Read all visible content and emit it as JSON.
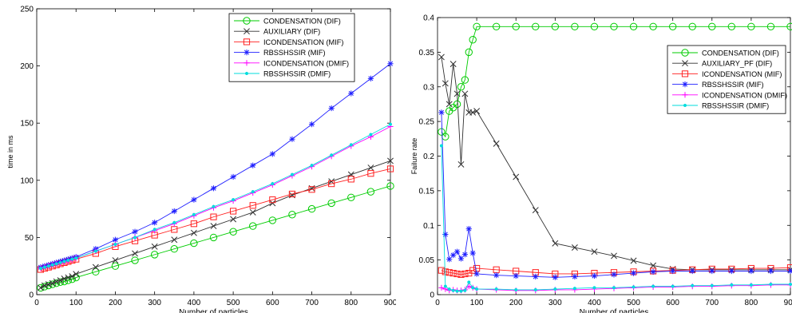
{
  "chart_data": [
    {
      "type": "line",
      "title": "",
      "xlabel": "Number of particles",
      "ylabel": "time in ms",
      "xlim": [
        0,
        900
      ],
      "ylim": [
        0,
        250
      ],
      "xticks": [
        "0",
        "100",
        "200",
        "300",
        "400",
        "500",
        "600",
        "700",
        "800",
        "900"
      ],
      "yticks": [
        "0",
        "50",
        "100",
        "150",
        "200",
        "250"
      ],
      "grid": false,
      "legend_position": "top-right",
      "x": [
        10,
        20,
        30,
        40,
        50,
        60,
        70,
        80,
        90,
        100,
        150,
        200,
        250,
        300,
        350,
        400,
        450,
        500,
        550,
        600,
        650,
        700,
        750,
        800,
        850,
        900
      ],
      "series": [
        {
          "name": "CONDENSATION (DIF)",
          "color": "#00cc00",
          "marker": "circle",
          "values": [
            6,
            7,
            8,
            9,
            10,
            11,
            11.5,
            12.5,
            13.5,
            15,
            20,
            25,
            30,
            35,
            40,
            45,
            50,
            55,
            60,
            65,
            70,
            75,
            80,
            85,
            90,
            95
          ]
        },
        {
          "name": "AUXILIARY (DIF)",
          "color": "#303030",
          "marker": "x",
          "values": [
            6,
            8,
            9,
            10,
            11.5,
            12.5,
            14,
            15,
            16,
            18,
            24,
            30,
            36,
            42,
            48,
            54,
            60,
            66,
            72,
            80,
            87,
            93,
            99,
            105,
            111,
            117
          ]
        },
        {
          "name": "ICONDENSATION (MIF)",
          "color": "#ff2020",
          "marker": "square",
          "values": [
            22,
            23,
            24,
            25,
            26,
            27,
            28,
            29,
            30,
            31,
            36,
            42,
            47,
            52,
            57,
            62,
            68,
            73,
            78,
            83,
            88,
            92,
            97,
            101,
            106,
            110
          ]
        },
        {
          "name": "RBSSHSSIR (MIF)",
          "color": "#2020ff",
          "marker": "star",
          "values": [
            24,
            25,
            26,
            27,
            28,
            29,
            30,
            31,
            32,
            33,
            40,
            48,
            55,
            63,
            73,
            83,
            93,
            103,
            113,
            123,
            136,
            149,
            163,
            176,
            189,
            202
          ]
        },
        {
          "name": "ICONDENSATION (DMIF)",
          "color": "#ff00ff",
          "marker": "plus",
          "values": [
            23,
            24,
            25,
            26,
            27,
            27.5,
            28.5,
            29.5,
            30.5,
            32,
            38,
            44,
            50,
            56,
            62,
            69,
            76,
            82,
            89,
            96,
            104,
            112,
            121,
            130,
            138,
            147
          ]
        },
        {
          "name": "RBSSHSSIR (DMIF)",
          "color": "#00dddd",
          "marker": "dot",
          "values": [
            23,
            24,
            25,
            26,
            27,
            28,
            29,
            30,
            31,
            32,
            38,
            44,
            50,
            57,
            63,
            70,
            77,
            83,
            90,
            97,
            105,
            113,
            122,
            131,
            140,
            149
          ]
        }
      ]
    },
    {
      "type": "line",
      "title": "",
      "xlabel": "Number of particles",
      "ylabel": "Failure rate",
      "xlim": [
        0,
        900
      ],
      "ylim": [
        0,
        0.4
      ],
      "xticks": [
        "0",
        "100",
        "200",
        "300",
        "400",
        "500",
        "600",
        "700",
        "800",
        "900"
      ],
      "yticks": [
        "0",
        "0.05",
        "0.1",
        "0.15",
        "0.2",
        "0.25",
        "0.3",
        "0.35",
        "0.4"
      ],
      "grid": false,
      "legend_position": "top-right",
      "x": [
        10,
        20,
        30,
        40,
        50,
        60,
        70,
        80,
        90,
        100,
        150,
        200,
        250,
        300,
        350,
        400,
        450,
        500,
        550,
        600,
        650,
        700,
        750,
        800,
        850,
        900
      ],
      "series": [
        {
          "name": "CONDENSATION (DIF)",
          "color": "#00cc00",
          "marker": "circle",
          "values": [
            0.235,
            0.228,
            0.265,
            0.27,
            0.275,
            0.3,
            0.31,
            0.35,
            0.368,
            0.387,
            0.387,
            0.387,
            0.387,
            0.387,
            0.387,
            0.387,
            0.387,
            0.387,
            0.387,
            0.387,
            0.387,
            0.387,
            0.387,
            0.387,
            0.387,
            0.387
          ]
        },
        {
          "name": "AUXILIARY_PF (DIF)",
          "color": "#303030",
          "marker": "x",
          "values": [
            0.343,
            0.305,
            0.275,
            0.333,
            0.29,
            0.188,
            0.29,
            0.263,
            0.263,
            0.265,
            0.218,
            0.17,
            0.122,
            0.074,
            0.068,
            0.062,
            0.056,
            0.049,
            0.042,
            0.037,
            0.036,
            0.036,
            0.036,
            0.036,
            0.036,
            0.036
          ]
        },
        {
          "name": "ICONDENSATION (MIF)",
          "color": "#ff2020",
          "marker": "square",
          "values": [
            0.035,
            0.033,
            0.032,
            0.031,
            0.03,
            0.029,
            0.03,
            0.031,
            0.035,
            0.038,
            0.036,
            0.034,
            0.032,
            0.03,
            0.03,
            0.031,
            0.032,
            0.033,
            0.034,
            0.035,
            0.036,
            0.037,
            0.037,
            0.038,
            0.038,
            0.039
          ]
        },
        {
          "name": "RBSSHSSIR (MIF)",
          "color": "#2020ff",
          "marker": "star",
          "values": [
            0.263,
            0.087,
            0.051,
            0.057,
            0.062,
            0.052,
            0.058,
            0.095,
            0.06,
            0.03,
            0.028,
            0.027,
            0.026,
            0.025,
            0.026,
            0.027,
            0.029,
            0.031,
            0.033,
            0.034,
            0.034,
            0.034,
            0.034,
            0.034,
            0.034,
            0.034
          ]
        },
        {
          "name": "ICONDENSATION (DMIF)",
          "color": "#ff00ff",
          "marker": "plus",
          "values": [
            0.01,
            0.008,
            0.006,
            0.007,
            0.006,
            0.006,
            0.007,
            0.012,
            0.01,
            0.008,
            0.007,
            0.006,
            0.006,
            0.007,
            0.007,
            0.008,
            0.009,
            0.01,
            0.011,
            0.011,
            0.012,
            0.012,
            0.013,
            0.013,
            0.014,
            0.014
          ]
        },
        {
          "name": "RBSSHSSIR (DMIF)",
          "color": "#00dddd",
          "marker": "dot",
          "values": [
            0.215,
            0.012,
            0.008,
            0.006,
            0.005,
            0.005,
            0.006,
            0.018,
            0.01,
            0.008,
            0.008,
            0.007,
            0.007,
            0.008,
            0.009,
            0.01,
            0.01,
            0.011,
            0.012,
            0.012,
            0.013,
            0.013,
            0.014,
            0.014,
            0.015,
            0.015
          ]
        }
      ]
    }
  ]
}
